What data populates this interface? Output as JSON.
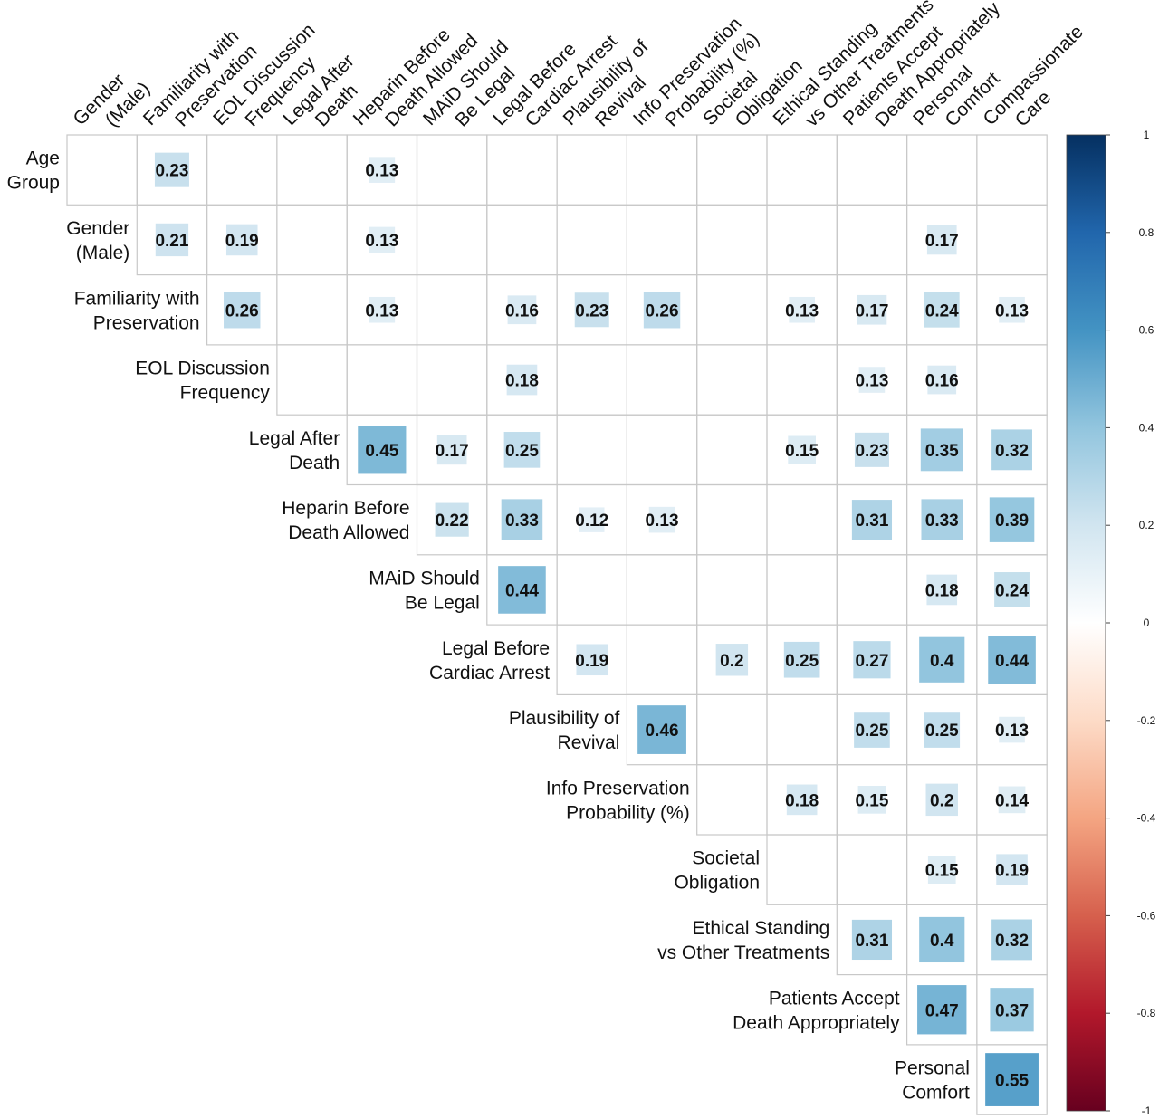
{
  "chart_data": {
    "type": "heatmap",
    "subtype": "correlation-upper-triangle",
    "row_labels": [
      [
        "Age",
        "Group"
      ],
      [
        "Gender",
        "(Male)"
      ],
      [
        "Familiarity with",
        "Preservation"
      ],
      [
        "EOL Discussion",
        "Frequency"
      ],
      [
        "Legal After",
        "Death"
      ],
      [
        "Heparin Before",
        "Death Allowed"
      ],
      [
        "MAiD Should",
        "Be Legal"
      ],
      [
        "Legal Before",
        "Cardiac Arrest"
      ],
      [
        "Plausibility of",
        "Revival"
      ],
      [
        "Info Preservation",
        "Probability (%)"
      ],
      [
        "Societal",
        "Obligation"
      ],
      [
        "Ethical Standing",
        "vs Other Treatments"
      ],
      [
        "Patients Accept",
        "Death Appropriately"
      ],
      [
        "Personal",
        "Comfort"
      ]
    ],
    "col_labels": [
      [
        "Gender",
        "(Male)"
      ],
      [
        "Familiarity with",
        "Preservation"
      ],
      [
        "EOL Discussion",
        "Frequency"
      ],
      [
        "Legal After",
        "Death"
      ],
      [
        "Heparin Before",
        "Death Allowed"
      ],
      [
        "MAiD Should",
        "Be Legal"
      ],
      [
        "Legal Before",
        "Cardiac Arrest"
      ],
      [
        "Plausibility of",
        "Revival"
      ],
      [
        "Info Preservation",
        "Probability (%)"
      ],
      [
        "Societal",
        "Obligation"
      ],
      [
        "Ethical Standing",
        "vs Other Treatments"
      ],
      [
        "Patients Accept",
        "Death Appropriately"
      ],
      [
        "Personal",
        "Comfort"
      ],
      [
        "Compassionate",
        "Care"
      ]
    ],
    "values": [
      [
        null,
        0.23,
        null,
        null,
        0.13,
        null,
        null,
        null,
        null,
        null,
        null,
        null,
        null,
        null
      ],
      [
        null,
        0.21,
        0.19,
        null,
        0.13,
        null,
        null,
        null,
        null,
        null,
        null,
        null,
        0.17,
        null
      ],
      [
        null,
        null,
        0.26,
        null,
        0.13,
        null,
        0.16,
        0.23,
        0.26,
        null,
        0.13,
        0.17,
        0.24,
        0.13
      ],
      [
        null,
        null,
        null,
        null,
        null,
        null,
        0.18,
        null,
        null,
        null,
        null,
        0.13,
        0.16,
        null
      ],
      [
        null,
        null,
        null,
        null,
        0.45,
        0.17,
        0.25,
        null,
        null,
        null,
        0.15,
        0.23,
        0.35,
        0.32
      ],
      [
        null,
        null,
        null,
        null,
        null,
        0.22,
        0.33,
        0.12,
        0.13,
        null,
        null,
        0.31,
        0.33,
        0.39
      ],
      [
        null,
        null,
        null,
        null,
        null,
        null,
        0.44,
        null,
        null,
        null,
        null,
        null,
        0.18,
        0.24
      ],
      [
        null,
        null,
        null,
        null,
        null,
        null,
        null,
        0.19,
        null,
        0.2,
        0.25,
        0.27,
        0.4,
        0.44
      ],
      [
        null,
        null,
        null,
        null,
        null,
        null,
        null,
        null,
        0.46,
        null,
        null,
        0.25,
        0.25,
        0.13
      ],
      [
        null,
        null,
        null,
        null,
        null,
        null,
        null,
        null,
        null,
        null,
        0.18,
        0.15,
        0.2,
        0.14
      ],
      [
        null,
        null,
        null,
        null,
        null,
        null,
        null,
        null,
        null,
        null,
        null,
        null,
        0.15,
        0.19
      ],
      [
        null,
        null,
        null,
        null,
        null,
        null,
        null,
        null,
        null,
        null,
        null,
        0.31,
        0.4,
        0.32
      ],
      [
        null,
        null,
        null,
        null,
        null,
        null,
        null,
        null,
        null,
        null,
        null,
        null,
        0.47,
        0.37
      ],
      [
        null,
        null,
        null,
        null,
        null,
        null,
        null,
        null,
        null,
        null,
        null,
        null,
        null,
        0.55
      ]
    ],
    "colorbar": {
      "range": [
        -1,
        1
      ],
      "ticks": [
        "1",
        "0.8",
        "0.6",
        "0.4",
        "0.2",
        "0",
        "-0.2",
        "-0.4",
        "-0.6",
        "-0.8",
        "-1"
      ],
      "palette": [
        "#67001f",
        "#b2182b",
        "#d6604d",
        "#f4a582",
        "#fddbc7",
        "#ffffff",
        "#d1e5f0",
        "#92c5de",
        "#4393c3",
        "#2166ac",
        "#053061"
      ]
    },
    "grid": true,
    "legend": "right",
    "title": ""
  }
}
